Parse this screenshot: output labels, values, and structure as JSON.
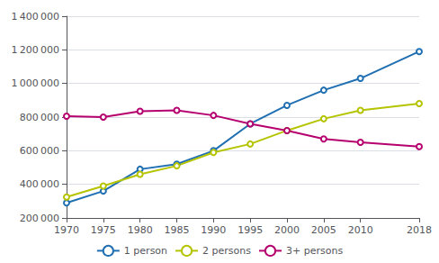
{
  "chart_data": {
    "type": "line",
    "x": [
      1970,
      1975,
      1980,
      1985,
      1990,
      1995,
      2000,
      2005,
      2010,
      2018
    ],
    "series": [
      {
        "name": "1 person",
        "color": "#1f6fb2",
        "values": [
          290000,
          360000,
          490000,
          520000,
          600000,
          760000,
          870000,
          960000,
          1030000,
          1190000
        ]
      },
      {
        "name": "2 persons",
        "color": "#b5c400",
        "values": [
          325000,
          390000,
          460000,
          510000,
          590000,
          640000,
          720000,
          790000,
          840000,
          880000
        ]
      },
      {
        "name": "3+ persons",
        "color": "#b5006e",
        "values": [
          805000,
          800000,
          835000,
          840000,
          810000,
          760000,
          720000,
          670000,
          650000,
          625000
        ]
      }
    ],
    "xlim": [
      1970,
      2018
    ],
    "xticks": [
      1970,
      1975,
      1980,
      1985,
      1990,
      1995,
      2000,
      2005,
      2010,
      2018
    ],
    "ylim": [
      200000,
      1400000
    ],
    "yticks": [
      {
        "value": 200000,
        "label": "200 000"
      },
      {
        "value": 400000,
        "label": "400 000"
      },
      {
        "value": 600000,
        "label": "600 000"
      },
      {
        "value": 800000,
        "label": "800 000"
      },
      {
        "value": 1000000,
        "label": "1 000 000"
      },
      {
        "value": 1200000,
        "label": "1 200 000"
      },
      {
        "value": 1400000,
        "label": "1 400 000"
      }
    ],
    "grid": true,
    "legend": "lower center"
  }
}
